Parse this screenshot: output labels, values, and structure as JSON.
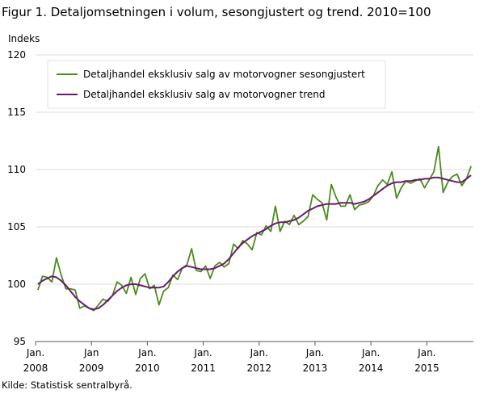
{
  "figure": {
    "title": "Figur 1. Detaljomsetningen i volum, sesongjustert og trend. 2010=100",
    "unit_label": "Indeks",
    "source": "Kilde: Statistisk sentralbyrå."
  },
  "colors": {
    "seasonal": "#4a8c1c",
    "trend": "#6a1b6f",
    "grid": "#dcdcdc",
    "axis": "#555555"
  },
  "chart_data": {
    "type": "line",
    "title": "Figur 1. Detaljomsetningen i volum, sesongjustert og trend. 2010=100",
    "ylabel": "Indeks",
    "xlabel": "",
    "ylim": [
      95,
      120
    ],
    "yticks": [
      "95",
      "100",
      "105",
      "110",
      "115",
      "120"
    ],
    "x_start": "2008-01",
    "x_frequency": "monthly",
    "xtick_labels": [
      {
        "month": "Jan.",
        "year": "2008"
      },
      {
        "month": "Jan",
        "year": "2009"
      },
      {
        "month": "Jan.",
        "year": "2010"
      },
      {
        "month": "Jan.",
        "year": "2011"
      },
      {
        "month": "Jan.",
        "year": "2012"
      },
      {
        "month": "Jan.",
        "year": "2013"
      },
      {
        "month": "Jan.",
        "year": "2014"
      },
      {
        "month": "Jan.",
        "year": "2015"
      }
    ],
    "grid": true,
    "legend_position": "top-left",
    "series": [
      {
        "name": "Detaljhandel eksklusiv salg av motorvogner sesongjustert",
        "color": "#4a8c1c",
        "values": [
          99.5,
          100.7,
          100.6,
          100.2,
          102.3,
          100.8,
          99.6,
          99.6,
          99.5,
          97.9,
          98.1,
          97.9,
          97.7,
          98.2,
          98.7,
          98.5,
          99.0,
          100.2,
          99.9,
          99.2,
          100.6,
          99.1,
          100.5,
          100.9,
          99.6,
          99.9,
          98.2,
          99.4,
          99.7,
          100.8,
          100.4,
          101.4,
          101.7,
          103.1,
          101.2,
          101.1,
          101.6,
          100.5,
          101.6,
          101.9,
          101.5,
          101.8,
          103.5,
          103.1,
          103.8,
          103.5,
          103.0,
          104.5,
          104.3,
          105.1,
          104.6,
          106.8,
          104.6,
          105.5,
          105.2,
          106.0,
          105.2,
          105.5,
          105.9,
          107.8,
          107.4,
          107.1,
          105.6,
          108.7,
          107.6,
          106.8,
          106.8,
          107.8,
          106.5,
          106.9,
          107.0,
          107.2,
          107.7,
          108.6,
          109.1,
          108.7,
          109.8,
          107.5,
          108.4,
          109.0,
          108.8,
          109.0,
          109.2,
          108.4,
          109.1,
          109.8,
          112.0,
          108.0,
          108.9,
          109.4,
          109.6,
          108.6,
          109.2,
          110.3
        ]
      },
      {
        "name": "Detaljhandel eksklusiv salg av motorvogner trend",
        "color": "#6a1b6f",
        "values": [
          100.0,
          100.3,
          100.5,
          100.7,
          100.6,
          100.3,
          99.9,
          99.4,
          98.9,
          98.5,
          98.2,
          97.9,
          97.8,
          97.9,
          98.2,
          98.6,
          99.0,
          99.4,
          99.7,
          99.9,
          100.0,
          100.0,
          99.9,
          99.8,
          99.7,
          99.7,
          99.7,
          99.8,
          100.2,
          100.7,
          101.1,
          101.4,
          101.6,
          101.5,
          101.4,
          101.3,
          101.3,
          101.3,
          101.4,
          101.6,
          101.8,
          102.2,
          102.7,
          103.2,
          103.6,
          103.9,
          104.2,
          104.4,
          104.6,
          104.8,
          105.1,
          105.3,
          105.4,
          105.4,
          105.5,
          105.6,
          105.8,
          106.1,
          106.4,
          106.6,
          106.8,
          106.9,
          107.0,
          107.0,
          107.0,
          107.1,
          107.1,
          107.1,
          107.0,
          107.1,
          107.2,
          107.4,
          107.7,
          108.0,
          108.3,
          108.6,
          108.8,
          108.9,
          108.9,
          109.0,
          109.0,
          109.1,
          109.1,
          109.2,
          109.2,
          109.3,
          109.3,
          109.2,
          109.1,
          109.0,
          108.9,
          108.9,
          109.2,
          109.5
        ]
      }
    ]
  }
}
